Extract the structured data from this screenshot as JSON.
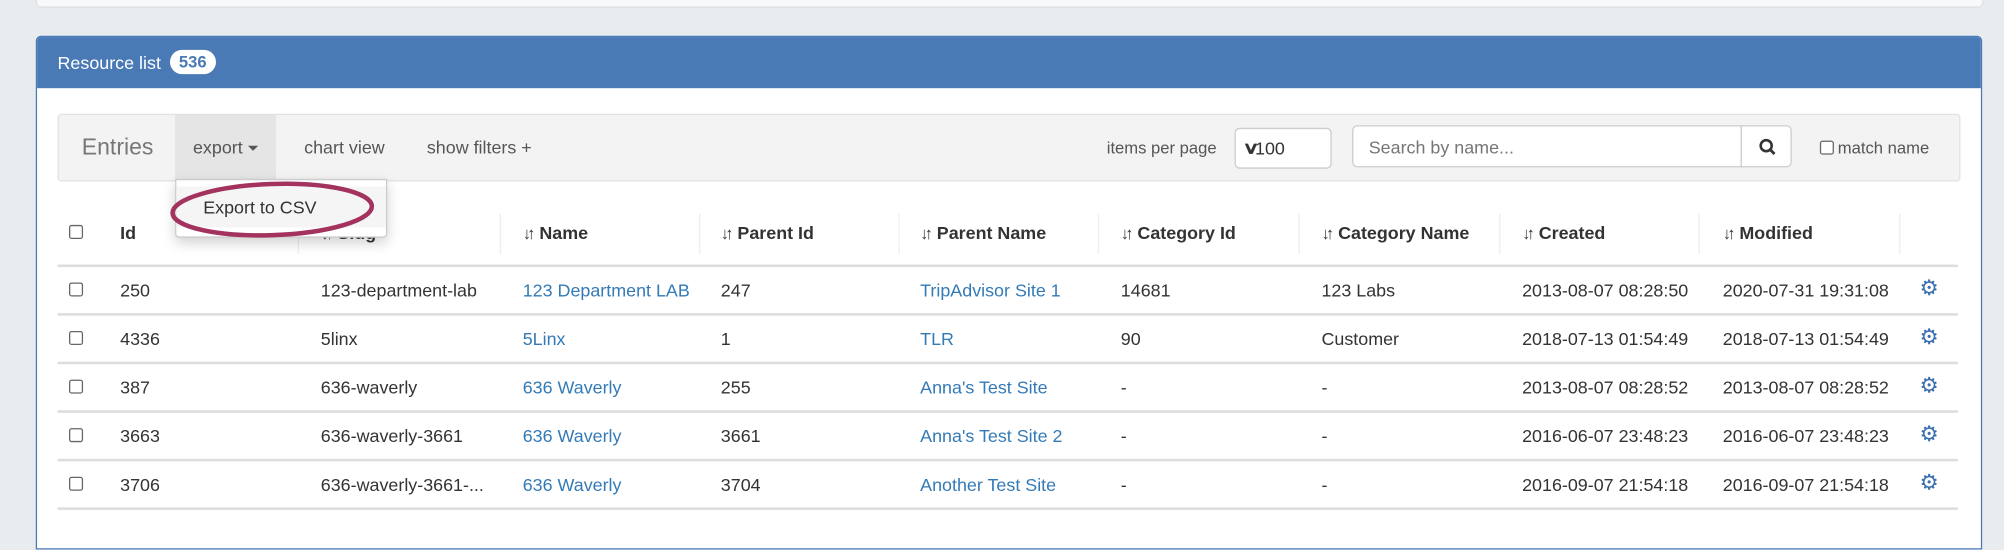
{
  "panel": {
    "title": "Resource list",
    "count": "536"
  },
  "toolbar": {
    "entries_label": "Entries",
    "export_label": "export",
    "chart_view_label": "chart view",
    "show_filters_label": "show filters +",
    "items_per_page_label": "items per page",
    "items_per_page_value": "100",
    "search_placeholder": "Search by name...",
    "match_name_label": "match name"
  },
  "export_menu": {
    "items": [
      {
        "label": "Export to CSV"
      }
    ]
  },
  "annotation": {
    "color": "#a3325e"
  },
  "colors": {
    "header": "#4a7ab5",
    "link": "#337ab7"
  },
  "table": {
    "columns": [
      "Id",
      "Slug",
      "Name",
      "Parent Id",
      "Parent Name",
      "Category Id",
      "Category Name",
      "Created",
      "Modified"
    ],
    "rows": [
      [
        "250",
        "123-department-lab",
        "123 Department LAB",
        "247",
        "TripAdvisor Site 1",
        "14681",
        "123 Labs",
        "2013-08-07 08:28:50",
        "2020-07-31 19:31:08"
      ],
      [
        "4336",
        "5linx",
        "5Linx",
        "1",
        "TLR",
        "90",
        "Customer",
        "2018-07-13 01:54:49",
        "2018-07-13 01:54:49"
      ],
      [
        "387",
        "636-waverly",
        "636 Waverly",
        "255",
        "Anna's Test Site",
        "-",
        "-",
        "2013-08-07 08:28:52",
        "2013-08-07 08:28:52"
      ],
      [
        "3663",
        "636-waverly-3661",
        "636 Waverly",
        "3661",
        "Anna's Test Site 2",
        "-",
        "-",
        "2016-06-07 23:48:23",
        "2016-06-07 23:48:23"
      ],
      [
        "3706",
        "636-waverly-3661-...",
        "636 Waverly",
        "3704",
        "Another Test Site",
        "-",
        "-",
        "2016-09-07 21:54:18",
        "2016-09-07 21:54:18"
      ]
    ]
  }
}
